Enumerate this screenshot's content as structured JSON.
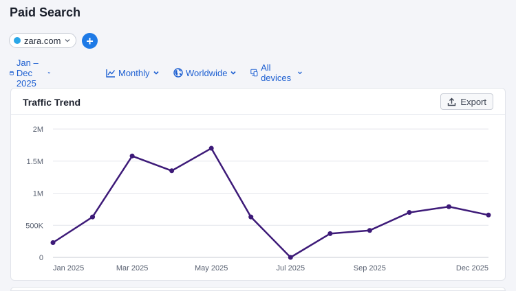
{
  "page": {
    "title": "Paid Search"
  },
  "domain_selector": {
    "label": "zara.com",
    "dot_color": "#2aa7e8"
  },
  "add_button": {
    "label": "+"
  },
  "filters": {
    "date": "Jan – Dec 2025",
    "granularity": "Monthly",
    "region": "Worldwide",
    "devices": "All devices"
  },
  "card": {
    "title": "Traffic Trend",
    "export_label": "Export"
  },
  "chart_data": {
    "type": "line",
    "x": [
      "Jan 2025",
      "Feb 2025",
      "Mar 2025",
      "Apr 2025",
      "May 2025",
      "Jun 2025",
      "Jul 2025",
      "Aug 2025",
      "Sep 2025",
      "Oct 2025",
      "Nov 2025",
      "Dec 2025"
    ],
    "x_tick_labels": [
      "Jan 2025",
      "Mar 2025",
      "May 2025",
      "Jul 2025",
      "Sep 2025",
      "Dec 2025"
    ],
    "x_tick_indices": [
      0,
      2,
      4,
      6,
      8,
      11
    ],
    "series": [
      {
        "values": [
          230000,
          630000,
          1580000,
          1350000,
          1700000,
          630000,
          0,
          370000,
          420000,
          700000,
          790000,
          660000
        ],
        "color": "#3d1a78"
      }
    ],
    "y_ticks": [
      0,
      500000,
      1000000,
      1500000,
      2000000
    ],
    "y_tick_labels": [
      "0",
      "500K",
      "1M",
      "1.5M",
      "2M"
    ],
    "ylim": [
      0,
      2000000
    ],
    "grid": true
  }
}
